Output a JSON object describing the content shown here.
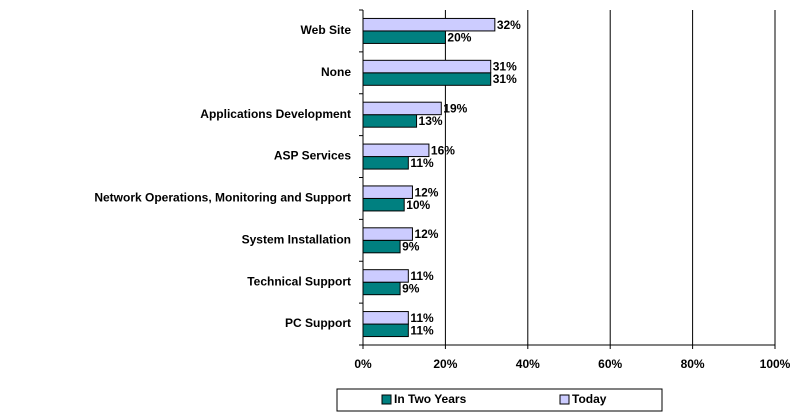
{
  "chart_data": {
    "type": "bar",
    "orientation": "horizontal",
    "categories": [
      "Web Site",
      "None",
      "Applications Development",
      "ASP Services",
      "Network Operations, Monitoring and Support",
      "System Installation",
      "Technical Support",
      "PC Support"
    ],
    "series": [
      {
        "name": "In Two Years",
        "color": "#008080",
        "values": [
          20,
          31,
          13,
          11,
          10,
          9,
          9,
          11
        ],
        "value_labels": [
          "20%",
          "31%",
          "13%",
          "11%",
          "10%",
          "9%",
          "9%",
          "11%"
        ]
      },
      {
        "name": "Today",
        "color": "#ccccff",
        "values": [
          32,
          31,
          19,
          16,
          12,
          12,
          11,
          11
        ],
        "value_labels": [
          "32%",
          "31%",
          "19%",
          "16%",
          "12%",
          "12%",
          "11%",
          "11%"
        ]
      }
    ],
    "xlim": [
      0,
      100
    ],
    "xticks": [
      {
        "value": 0,
        "label": "0%"
      },
      {
        "value": 20,
        "label": "20%"
      },
      {
        "value": 40,
        "label": "40%"
      },
      {
        "value": 60,
        "label": "60%"
      },
      {
        "value": 80,
        "label": "80%"
      },
      {
        "value": 100,
        "label": "100%"
      }
    ],
    "grid": true,
    "legend": "bottom"
  }
}
